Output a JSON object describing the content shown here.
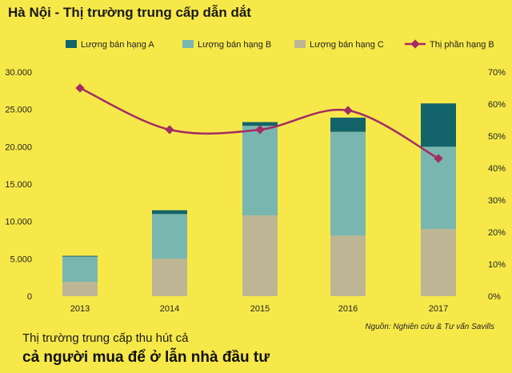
{
  "header": {
    "title": "Hà Nội - Thị trường trung cấp dẫn dắt"
  },
  "footer": {
    "source": "Nguồn: Nghiên cứu & Tư vấn Savills",
    "caption_line1": "Thị trường trung cấp thu hút cả",
    "caption_line2": "cả người mua để ở lẫn nhà đầu tư"
  },
  "chart_data": {
    "type": "bar",
    "stacked": true,
    "categories": [
      "2013",
      "2014",
      "2015",
      "2016",
      "2017"
    ],
    "series": [
      {
        "name": "Lượng bán hạng C",
        "values": [
          1900,
          5000,
          10800,
          8100,
          9000
        ],
        "color": "#BEB594"
      },
      {
        "name": "Lượng bán hạng B",
        "values": [
          3400,
          6000,
          12000,
          13900,
          11000
        ],
        "color": "#79B6B0"
      },
      {
        "name": "Lượng bán hạng A",
        "values": [
          100,
          500,
          500,
          1900,
          5800
        ],
        "color": "#12636A"
      }
    ],
    "line_series": {
      "name": "Thị phần hạng B",
      "values": [
        65,
        52,
        52,
        58,
        43
      ],
      "color": "#A32C64",
      "axis": "right"
    },
    "legend_order": [
      "Lượng bán hạng A",
      "Lượng bán hạng B",
      "Lượng bán hạng C",
      "Thị phần hạng B"
    ],
    "y_left": {
      "min": 0,
      "max": 30000,
      "ticks": [
        "0",
        "5.000",
        "10.000",
        "15.000",
        "20.000",
        "25.000",
        "30.000"
      ]
    },
    "y_right": {
      "min": 0,
      "max": 70,
      "ticks": [
        "0%",
        "10%",
        "20%",
        "30%",
        "40%",
        "50%",
        "60%",
        "70%"
      ]
    },
    "legend_position": "top",
    "grid": false
  }
}
